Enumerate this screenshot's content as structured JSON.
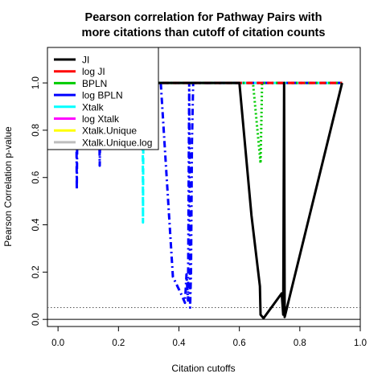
{
  "chart_data": {
    "type": "line",
    "title": [
      "Pearson correlation for Pathway Pairs with",
      "more citations than cutoff of citation counts"
    ],
    "xlabel": "Citation cutoffs",
    "ylabel": "Pearson Correlation p-value",
    "xlim": [
      -0.035,
      1.0
    ],
    "ylim": [
      -0.03,
      1.15
    ],
    "x_ticks": [
      0.0,
      0.2,
      0.4,
      0.6,
      0.8,
      1.0
    ],
    "x_tick_labels": [
      "0.0",
      "0.2",
      "0.4",
      "0.6",
      "0.8",
      "1.0"
    ],
    "y_ticks": [
      0.0,
      0.2,
      0.4,
      0.6,
      0.8,
      1.0
    ],
    "y_tick_labels": [
      "0.0",
      "0.2",
      "0.4",
      "0.6",
      "0.8",
      "1.0"
    ],
    "reference_lines": [
      {
        "y": 0.05,
        "style": "dotted",
        "color": "#555555"
      },
      {
        "y": 0.0,
        "style": "solid",
        "color": "#000000"
      }
    ],
    "legend_position": "top-left",
    "series": [
      {
        "name": "JI",
        "color": "#000000",
        "dash": "solid",
        "x": [
          0.0,
          0.6,
          0.64,
          0.668,
          0.67,
          0.68,
          0.74,
          0.745,
          0.748,
          0.75,
          0.94
        ],
        "y": [
          1.0,
          1.0,
          0.44,
          0.14,
          0.02,
          0.005,
          0.11,
          0.02,
          1.0,
          0.01,
          1.0
        ]
      },
      {
        "name": "log JI",
        "color": "#ff0000",
        "dash": "dashed",
        "x": [
          0.0,
          0.94
        ],
        "y": [
          1.0,
          1.0
        ]
      },
      {
        "name": "BPLN",
        "color": "#00cc00",
        "dash": "dotted",
        "x": [
          0.0,
          0.645,
          0.67,
          0.675,
          0.94
        ],
        "y": [
          1.0,
          1.0,
          0.66,
          1.0,
          1.0
        ]
      },
      {
        "name": "log BPLN",
        "color": "#0000ff",
        "dash": "dashdot",
        "x": [
          0.0,
          0.06,
          0.062,
          0.065,
          0.135,
          0.138,
          0.142,
          0.34,
          0.38,
          0.41,
          0.42,
          0.425,
          0.43,
          0.434,
          0.437,
          0.44,
          0.443,
          0.447,
          0.45,
          0.94
        ],
        "y": [
          1.0,
          1.0,
          0.55,
          1.0,
          1.0,
          0.65,
          1.0,
          1.0,
          0.18,
          0.1,
          0.07,
          0.19,
          0.08,
          1.0,
          0.05,
          0.2,
          0.75,
          1.0,
          1.0,
          1.0
        ]
      },
      {
        "name": "Xtalk",
        "color": "#00ffff",
        "dash": "dashed",
        "x": [
          0.0,
          0.28,
          0.281,
          0.283,
          0.94
        ],
        "y": [
          1.0,
          1.0,
          0.41,
          1.0,
          1.0
        ]
      },
      {
        "name": "log Xtalk",
        "color": "#ff00ff",
        "dash": "dashed",
        "x": [
          0.0,
          0.94
        ],
        "y": [
          1.0,
          1.0
        ]
      },
      {
        "name": "Xtalk.Unique",
        "color": "#ffff00",
        "dash": "longdash",
        "x": [
          0.0,
          0.94
        ],
        "y": [
          1.0,
          1.0
        ]
      },
      {
        "name": "Xtalk.Unique.log",
        "color": "#bebebe",
        "dash": "twodash",
        "x": [
          0.0,
          0.94
        ],
        "y": [
          1.0,
          1.0
        ]
      }
    ]
  }
}
